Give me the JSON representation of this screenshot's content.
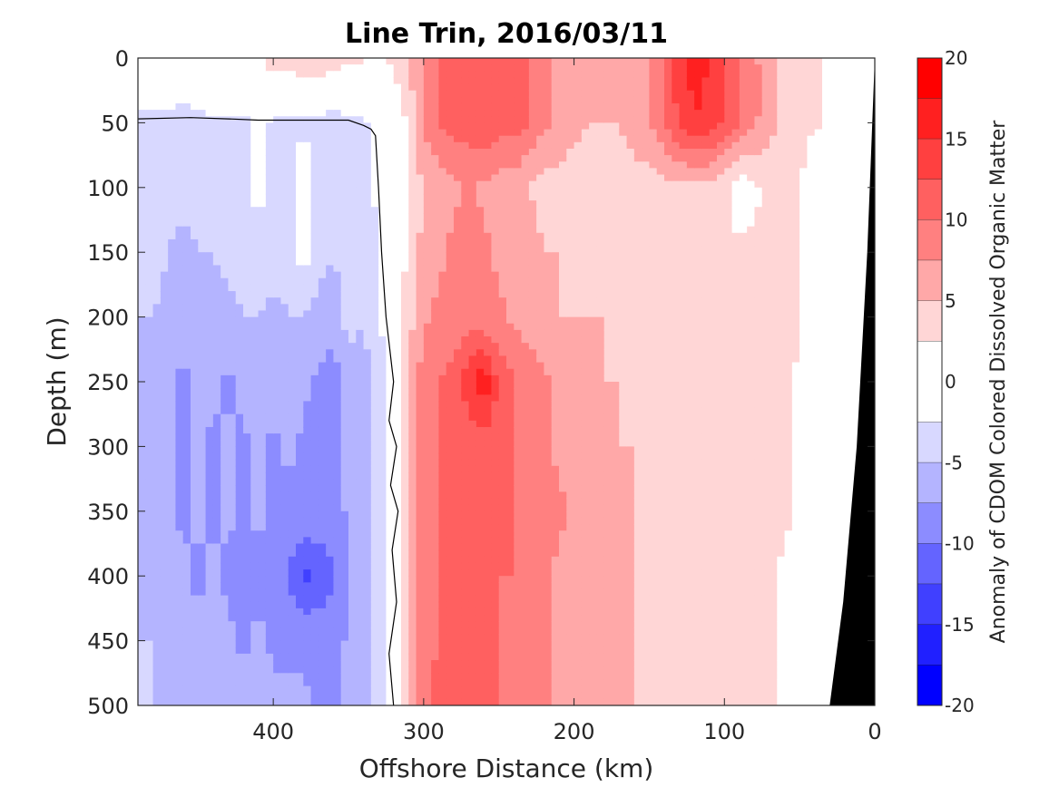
{
  "chart_data": {
    "type": "heatmap",
    "title": "Line Trin, 2016/03/11",
    "xlabel": "Offshore Distance (km)",
    "ylabel": "Depth (m)",
    "colorbar_label": "Anomaly of CDOM Colored Dissolved Organic Matter",
    "xlim": [
      490,
      0
    ],
    "ylim": [
      500,
      0
    ],
    "x_ticks": [
      400,
      300,
      200,
      100,
      0
    ],
    "x_tick_labels": [
      "400",
      "300",
      "200",
      "100",
      "0"
    ],
    "y_ticks": [
      0,
      50,
      100,
      150,
      200,
      250,
      300,
      350,
      400,
      450,
      500
    ],
    "y_tick_labels": [
      "0",
      "50",
      "100",
      "150",
      "200",
      "250",
      "300",
      "350",
      "400",
      "450",
      "500"
    ],
    "colorbar_ticks": [
      20,
      15,
      10,
      5,
      0,
      -5,
      -10,
      -15,
      -20
    ],
    "colorbar_tick_labels": [
      "20",
      "15",
      "10",
      "5",
      "0",
      "-5",
      "-10",
      "-15",
      "-20"
    ],
    "color_levels": [
      {
        "lo": 17.5,
        "hi": 20,
        "color": "#ff0000"
      },
      {
        "lo": 15,
        "hi": 17.5,
        "color": "#ff2020"
      },
      {
        "lo": 12.5,
        "hi": 15,
        "color": "#ff4040"
      },
      {
        "lo": 10,
        "hi": 12.5,
        "color": "#ff6060"
      },
      {
        "lo": 7.5,
        "hi": 10,
        "color": "#ff8080"
      },
      {
        "lo": 5,
        "hi": 7.5,
        "color": "#ffa8a8"
      },
      {
        "lo": 2.5,
        "hi": 5,
        "color": "#ffd6d6"
      },
      {
        "lo": -2.5,
        "hi": 2.5,
        "color": "#ffffff"
      },
      {
        "lo": -5,
        "hi": -2.5,
        "color": "#d8d8ff"
      },
      {
        "lo": -7.5,
        "hi": -5,
        "color": "#b4b4ff"
      },
      {
        "lo": -10,
        "hi": -7.5,
        "color": "#8c8cff"
      },
      {
        "lo": -12.5,
        "hi": -10,
        "color": "#6464ff"
      },
      {
        "lo": -15,
        "hi": -12.5,
        "color": "#4040ff"
      },
      {
        "lo": -17.5,
        "hi": -15,
        "color": "#2020ff"
      },
      {
        "lo": -20,
        "hi": -17.5,
        "color": "#0000ff"
      }
    ],
    "x_columns_km": [
      480,
      470,
      460,
      450,
      440,
      430,
      420,
      410,
      400,
      390,
      380,
      370,
      360,
      350,
      340,
      330,
      320,
      310,
      300,
      290,
      280,
      270,
      260,
      250,
      240,
      230,
      220,
      210,
      200,
      190,
      180,
      170,
      160,
      150,
      140,
      130,
      120,
      110,
      100,
      90,
      80,
      70,
      60,
      50,
      40,
      30,
      20,
      10
    ],
    "depth_rows_m": [
      0,
      50,
      100,
      150,
      200,
      250,
      300,
      350,
      400,
      450,
      500
    ],
    "grid": [
      [
        0,
        0,
        0,
        0,
        1,
        2,
        2,
        2,
        4,
        4,
        5,
        5,
        4,
        3,
        3,
        2,
        3,
        5,
        8,
        10,
        11,
        11,
        12,
        11,
        11,
        10,
        8,
        7,
        6,
        5,
        5,
        5,
        6,
        7,
        10,
        14,
        16,
        15,
        12,
        10,
        8,
        6,
        4,
        3,
        3,
        2,
        1,
        0
      ],
      [
        -3,
        -3,
        -4,
        -3,
        -3,
        -3,
        -3,
        -2,
        -3,
        -3,
        -3,
        -3,
        -4,
        -3,
        -3,
        -2,
        0,
        3,
        8,
        10,
        11,
        11,
        12,
        11,
        11,
        10,
        8,
        7,
        6,
        5,
        5,
        5,
        6,
        7,
        10,
        13,
        15,
        14,
        12,
        10,
        8,
        6,
        4,
        3,
        3,
        2,
        1,
        0
      ],
      [
        -3,
        -4,
        -4,
        -4,
        -3,
        -3,
        -3,
        -2,
        -3,
        -3,
        -1,
        -3,
        -4,
        -3,
        -3,
        -2,
        0,
        3,
        5,
        6,
        7,
        8,
        7,
        6,
        6,
        5,
        4,
        4,
        3,
        3,
        3,
        4,
        4,
        4,
        4,
        4,
        4,
        4,
        3,
        1,
        2,
        3,
        3,
        3,
        0,
        1,
        2,
        0
      ],
      [
        -4,
        -5,
        -6,
        -5,
        -5,
        -4,
        -4,
        -3,
        -3,
        -4,
        -1,
        -4,
        -5,
        -4,
        -4,
        -3,
        0,
        3,
        6,
        7,
        8,
        8,
        8,
        7,
        7,
        6,
        5,
        5,
        4,
        4,
        4,
        4,
        4,
        4,
        4,
        4,
        4,
        4,
        3,
        3,
        3,
        3,
        3,
        3,
        0,
        1,
        2,
        0
      ],
      [
        -5,
        -6,
        -7,
        -6,
        -6,
        -6,
        -5,
        -5,
        -6,
        -5,
        -5,
        -6,
        -6,
        -4,
        -5,
        -3,
        0,
        4,
        7,
        8,
        8,
        9,
        8,
        8,
        7,
        6,
        6,
        5,
        5,
        5,
        5,
        4,
        4,
        4,
        4,
        4,
        4,
        4,
        3,
        3,
        3,
        3,
        3,
        3,
        0,
        1,
        2,
        0
      ],
      [
        -6,
        -7,
        -8,
        -7,
        -7,
        -8,
        -7,
        -6,
        -7,
        -6,
        -7,
        -8,
        -9,
        -6,
        -6,
        -4,
        0,
        5,
        9,
        10,
        11,
        14,
        17,
        12,
        10,
        9,
        8,
        7,
        6,
        6,
        5,
        5,
        4,
        4,
        4,
        4,
        4,
        4,
        3,
        3,
        3,
        3,
        3,
        2,
        0,
        1,
        2,
        0
      ],
      [
        -6,
        -7,
        -8,
        -7,
        -8,
        -7,
        -8,
        -7,
        -8,
        -7,
        -8,
        -8,
        -9,
        -7,
        -6,
        -4,
        0,
        5,
        9,
        10,
        11,
        11,
        11,
        10,
        10,
        9,
        8,
        7,
        7,
        6,
        6,
        5,
        5,
        4,
        4,
        4,
        4,
        4,
        4,
        3,
        3,
        3,
        3,
        2,
        0,
        1,
        2,
        0
      ],
      [
        -6,
        -7,
        -8,
        -7,
        -8,
        -7,
        -8,
        -7,
        -8,
        -8,
        -8,
        -8,
        -9,
        -7,
        -6,
        -4,
        0,
        5,
        9,
        10,
        11,
        11,
        10,
        11,
        10,
        9,
        8,
        8,
        7,
        6,
        6,
        5,
        5,
        5,
        4,
        4,
        4,
        4,
        4,
        3,
        3,
        3,
        3,
        2,
        0,
        1,
        2,
        0
      ],
      [
        -6,
        -7,
        -7,
        -8,
        -7,
        -8,
        -9,
        -8,
        -9,
        -10,
        -13,
        -12,
        -10,
        -7,
        -6,
        -4,
        0,
        5,
        9,
        10,
        11,
        11,
        10,
        10,
        10,
        9,
        8,
        7,
        6,
        6,
        5,
        5,
        5,
        4,
        4,
        4,
        4,
        4,
        3,
        3,
        3,
        3,
        2,
        2,
        0,
        1,
        2,
        0
      ],
      [
        -5,
        -6,
        -7,
        -7,
        -7,
        -7,
        -8,
        -7,
        -8,
        -8,
        -8,
        -8,
        -9,
        -7,
        -6,
        -4,
        0,
        5,
        9,
        10,
        11,
        11,
        10,
        10,
        9,
        9,
        8,
        7,
        6,
        6,
        5,
        5,
        5,
        4,
        4,
        4,
        4,
        4,
        3,
        3,
        3,
        3,
        2,
        2,
        0,
        1,
        2,
        0
      ],
      [
        -5,
        -6,
        -7,
        -6,
        -7,
        -6,
        -7,
        -6,
        -7,
        -7,
        -7,
        -8,
        -9,
        -7,
        -6,
        -4,
        0,
        5,
        9,
        11,
        12,
        12,
        11,
        10,
        9,
        9,
        8,
        7,
        6,
        6,
        5,
        5,
        5,
        4,
        4,
        4,
        4,
        4,
        3,
        3,
        3,
        3,
        2,
        2,
        0,
        1,
        2,
        0
      ]
    ],
    "contour_zero_line_x_km": [
      490,
      455,
      430,
      410,
      380,
      350,
      340,
      335,
      332,
      330,
      328,
      325,
      320,
      323,
      318,
      322,
      317,
      321,
      318,
      323,
      320
    ],
    "contour_zero_line_depth_m": [
      47,
      46,
      47,
      48,
      48,
      48,
      52,
      55,
      60,
      100,
      150,
      200,
      250,
      280,
      300,
      330,
      350,
      380,
      420,
      460,
      500
    ],
    "land": true
  }
}
